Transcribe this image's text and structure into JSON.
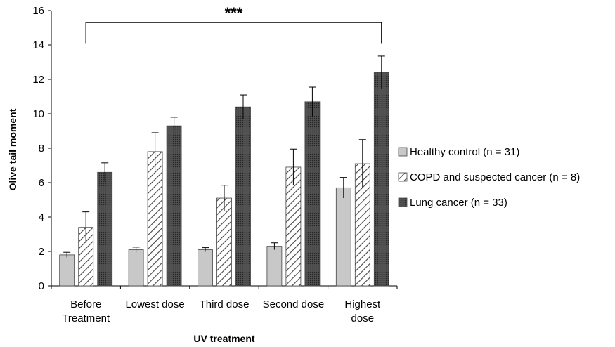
{
  "chart_data": {
    "type": "bar",
    "xlabel": "UV treatment",
    "ylabel": "Olive tail moment",
    "ylim": [
      0,
      16
    ],
    "yticks": [
      0,
      2,
      4,
      6,
      8,
      10,
      12,
      14,
      16
    ],
    "categories": [
      [
        "Before",
        "Treatment"
      ],
      [
        "Lowest dose"
      ],
      [
        "Third dose"
      ],
      [
        "Second dose"
      ],
      [
        "Highest",
        "dose"
      ]
    ],
    "series": [
      {
        "name": "Healthy control (n = 31)",
        "fill": "#c8c8c8",
        "pattern": "solid",
        "values": [
          1.8,
          2.1,
          2.1,
          2.3,
          5.7
        ],
        "errors": [
          0.15,
          0.15,
          0.12,
          0.2,
          0.6
        ]
      },
      {
        "name": "COPD and suspected cancer (n = 8)",
        "fill": "#ffffff",
        "pattern": "diagonal-hatch",
        "values": [
          3.4,
          7.8,
          5.1,
          6.9,
          7.1
        ],
        "errors": [
          0.9,
          1.1,
          0.75,
          1.05,
          1.4
        ]
      },
      {
        "name": "Lung cancer (n = 33)",
        "fill": "#3a3a3a",
        "pattern": "dark-dotted",
        "values": [
          6.6,
          9.3,
          10.4,
          10.7,
          12.4
        ],
        "errors": [
          0.55,
          0.5,
          0.7,
          0.85,
          0.95
        ]
      }
    ],
    "grid": false,
    "legend_position": "right",
    "significance": {
      "label": "***",
      "from_category": 0,
      "to_category": 4,
      "y": 15.3
    }
  }
}
